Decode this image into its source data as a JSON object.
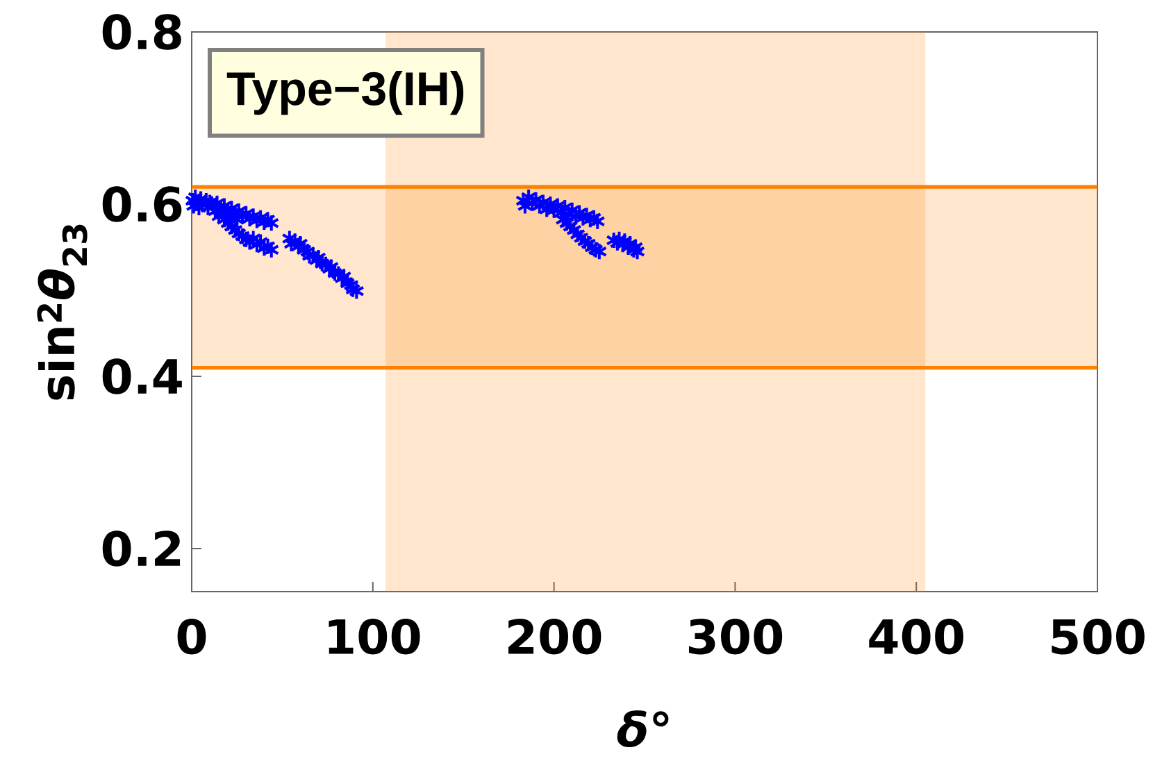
{
  "chart_data": {
    "type": "scatter",
    "xlabel": "*δ*°",
    "ylabel": "sin$^{2}$*θ*$_{23}$",
    "annotations": [
      "Type−3(IH)"
    ],
    "x": [
      0.5,
      1,
      2,
      3,
      4,
      5,
      6,
      8,
      9,
      10,
      12,
      13,
      14,
      16,
      17,
      18,
      20,
      21,
      22,
      24,
      25,
      26,
      28,
      30,
      32,
      34,
      36,
      38,
      40,
      42,
      44,
      15,
      18,
      20,
      22,
      24,
      26,
      28,
      30,
      32,
      34,
      36,
      38,
      40,
      42,
      44,
      54,
      55,
      57,
      59,
      60,
      62,
      64,
      65,
      67,
      69,
      70,
      72,
      74,
      76,
      77,
      79,
      81,
      83,
      84,
      86,
      88,
      89,
      91,
      183,
      184,
      186,
      188,
      190,
      192,
      194,
      196,
      198,
      200,
      202,
      204,
      206,
      208,
      210,
      212,
      214,
      216,
      218,
      220,
      222,
      224,
      205,
      207,
      209,
      211,
      213,
      215,
      217,
      219,
      221,
      223,
      225,
      233,
      235,
      236,
      238,
      239,
      241,
      242,
      244,
      245,
      246
    ],
    "values": [
      0.604,
      0.598,
      0.608,
      0.601,
      0.596,
      0.606,
      0.6,
      0.604,
      0.596,
      0.602,
      0.598,
      0.592,
      0.601,
      0.595,
      0.588,
      0.598,
      0.592,
      0.585,
      0.595,
      0.589,
      0.582,
      0.592,
      0.586,
      0.589,
      0.583,
      0.586,
      0.581,
      0.584,
      0.579,
      0.582,
      0.578,
      0.586,
      0.582,
      0.578,
      0.574,
      0.57,
      0.566,
      0.563,
      0.559,
      0.556,
      0.56,
      0.553,
      0.556,
      0.549,
      0.551,
      0.547,
      0.56,
      0.554,
      0.557,
      0.551,
      0.554,
      0.547,
      0.545,
      0.54,
      0.541,
      0.535,
      0.538,
      0.531,
      0.53,
      0.525,
      0.527,
      0.52,
      0.519,
      0.514,
      0.516,
      0.508,
      0.506,
      0.501,
      0.499,
      0.604,
      0.598,
      0.608,
      0.601,
      0.605,
      0.598,
      0.602,
      0.594,
      0.6,
      0.593,
      0.598,
      0.59,
      0.596,
      0.588,
      0.593,
      0.586,
      0.59,
      0.584,
      0.587,
      0.582,
      0.584,
      0.58,
      0.582,
      0.578,
      0.574,
      0.57,
      0.565,
      0.561,
      0.557,
      0.554,
      0.55,
      0.547,
      0.545,
      0.558,
      0.555,
      0.559,
      0.553,
      0.557,
      0.55,
      0.554,
      0.547,
      0.55,
      0.545
    ],
    "color": "#0000ff",
    "marker": "cross",
    "xlim": [
      0,
      500
    ],
    "ylim": [
      0.15,
      0.8
    ],
    "xticks": [
      0,
      100,
      200,
      300,
      400,
      500
    ],
    "yticks": [
      0.2,
      0.4,
      0.6,
      0.8
    ],
    "ref_lines": [
      {
        "axis": "y",
        "value": 0.62,
        "color": "#ff8000"
      },
      {
        "axis": "y",
        "value": 0.41,
        "color": "#ff8000"
      }
    ],
    "bands": [
      {
        "axis": "x",
        "from": 107,
        "to": 405,
        "color": "#ff8000"
      },
      {
        "axis": "y",
        "from": 0.41,
        "to": 0.62,
        "color": "#ff8000"
      }
    ]
  }
}
